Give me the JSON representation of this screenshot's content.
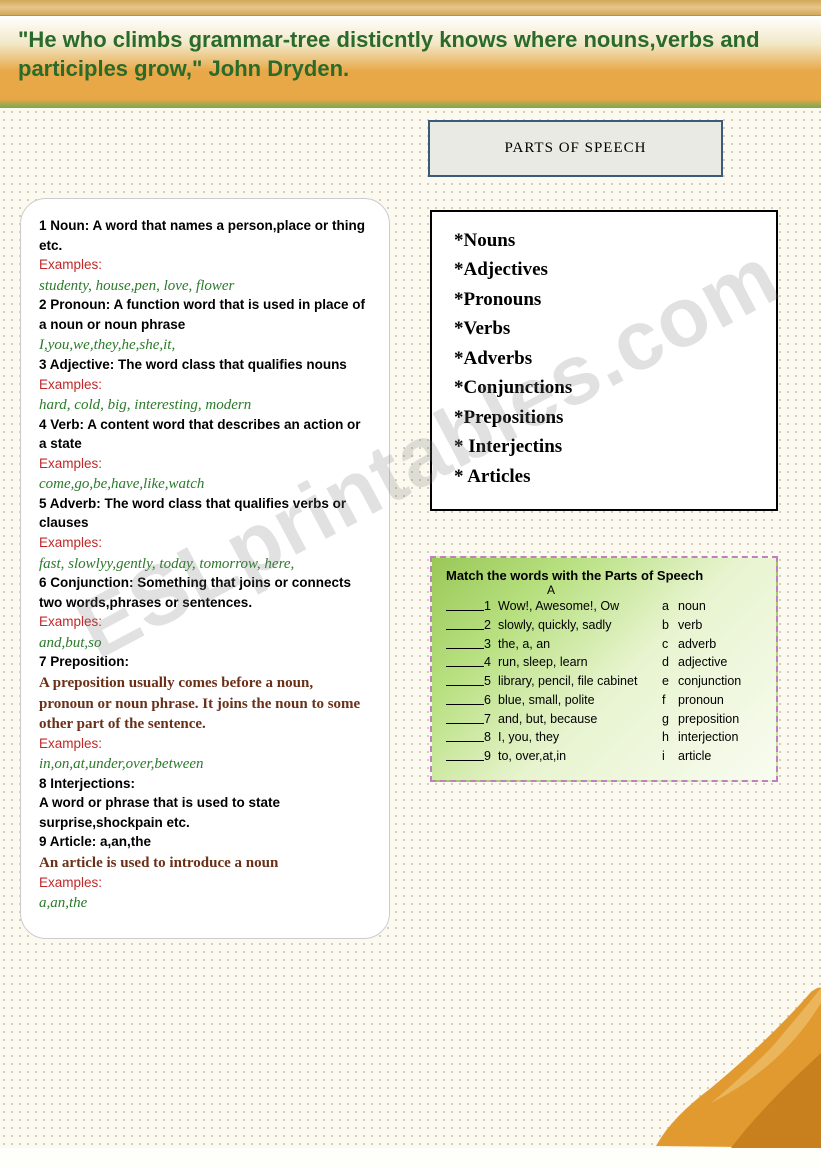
{
  "banner": {
    "quote": "\"He who climbs grammar-tree disticntly knows where nouns,verbs and participles grow,\" John Dryden."
  },
  "titleBox": {
    "text": "PARTS OF SPEECH"
  },
  "definitions": [
    {
      "num": "1",
      "term": "Noun",
      "def": "A word that names a person,place or thing etc.",
      "exLabel": "Examples:",
      "ex": "studenty, house,pen, love, flower"
    },
    {
      "num": "2",
      "term": "Pronoun",
      "def": "A function word that is used in place of a noun or noun phrase",
      "exLabel": "",
      "ex": "I,you,we,they,he,she,it,"
    },
    {
      "num": "3",
      "term": "Adjective",
      "def": "The word class that qualifies nouns",
      "exLabel": "Examples:",
      "ex": "hard, cold, big, interesting, modern"
    },
    {
      "num": "4",
      "term": "Verb",
      "def": "A content word that describes an action or a state",
      "exLabel": "Examples:",
      "ex": "come,go,be,have,like,watch"
    },
    {
      "num": "5",
      "term": "Adverb",
      "def": "The word class that qualifies verbs or clauses",
      "exLabel": "Examples:",
      "ex": "fast, slowlyy,gently, today, tomorrow, here,"
    },
    {
      "num": "6",
      "term": "Conjunction",
      "def": "Something that joins or connects two words,phrases or sentences.",
      "exLabel": "Examples:",
      "ex": "and,but,so"
    },
    {
      "num": "7",
      "term": "Preposition",
      "def": "",
      "brownText": "A preposition usually comes before a noun, pronoun or noun phrase. It joins the noun to some other part of the sentence.",
      "exLabel": "Examples:",
      "ex": "in,on,at,under,over,between"
    },
    {
      "num": "8",
      "term": "Interjections",
      "def": "",
      "brownText": " A word or  phrase that is used to state surprise,shockpain etc.",
      "exLabel": "",
      "ex": ""
    },
    {
      "num": "9",
      "term": "Article",
      "def": "a,an,the",
      "brownText": "An article is used to introduce a noun",
      "exLabel": "Examples:",
      "ex": "a,an,the"
    }
  ],
  "listBox": {
    "items": [
      "*Nouns",
      "*Adjectives",
      "*Pronouns",
      "*Verbs",
      "*Adverbs",
      "*Conjunctions",
      "*Prepositions",
      "*  Interjectins",
      "*  Articles"
    ]
  },
  "matchBox": {
    "title": "Match the words with the Parts of Speech",
    "colA": "A",
    "rows": [
      {
        "n": "1",
        "words": "Wow!, Awesome!, Ow",
        "l": "a",
        "pos": "noun"
      },
      {
        "n": "2",
        "words": "slowly, quickly, sadly",
        "l": "b",
        "pos": "verb"
      },
      {
        "n": "3",
        "words": "the, a, an",
        "l": "c",
        "pos": "adverb"
      },
      {
        "n": "4",
        "words": "run, sleep, learn",
        "l": "d",
        "pos": "adjective"
      },
      {
        "n": "5",
        "words": "library, pencil, file cabinet",
        "l": "e",
        "pos": "conjunction"
      },
      {
        "n": "6",
        "words": "blue, small, polite",
        "l": "f",
        "pos": "pronoun"
      },
      {
        "n": "7",
        "words": "and, but, because",
        "l": "g",
        "pos": "preposition"
      },
      {
        "n": "8",
        "words": "I, you, they",
        "l": "h",
        "pos": "interjection"
      },
      {
        "n": "9",
        "words": "to, over,at,in",
        "l": "i",
        "pos": "article"
      }
    ]
  },
  "watermark": "ESLprintables.com",
  "colors": {
    "topbarGradient": [
      "#d2a85a",
      "#e8c58a"
    ],
    "bannerGradient": [
      "#ffffff",
      "#e8a848",
      "#7aa850"
    ],
    "quoteColor": "#2a6a2a",
    "titleBoxBg": "#eaeae4",
    "titleBoxBorder": "#3a5a78",
    "exLabelColor": "#c02828",
    "exColor": "#2a7a2a",
    "brownColor": "#6a3018",
    "matchBorder": "#c080c0",
    "matchGradient": [
      "#9ac858",
      "#f8fcf0"
    ],
    "cornerFill": "#d89028"
  }
}
